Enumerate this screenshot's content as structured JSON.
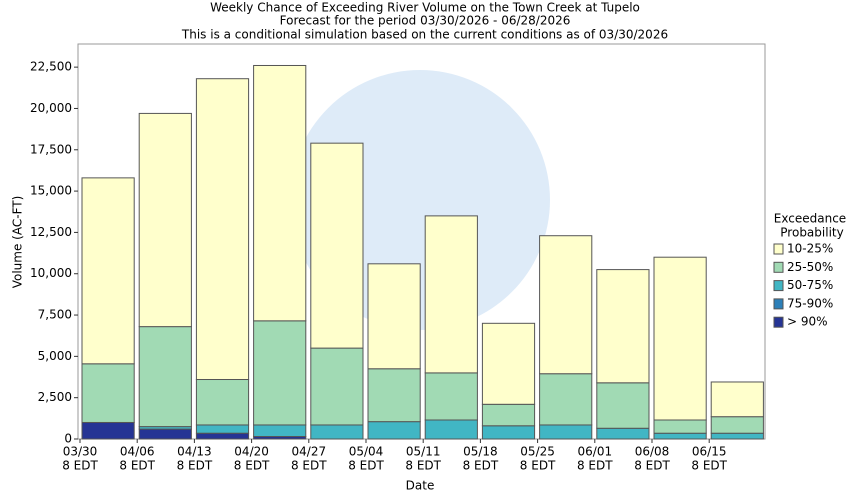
{
  "chart_data": {
    "type": "stacked_bar",
    "title": [
      "Weekly Chance of Exceeding River Volume on the Town Creek at Tupelo",
      "Forecast for the period 03/30/2026 - 06/28/2026",
      "This is a conditional simulation based on the current conditions as of 03/30/2026"
    ],
    "x_label": "Date",
    "y_label": "Volume (AC-FT)",
    "legend_title": [
      "Exceedance",
      "Probability"
    ],
    "legend_position": "right",
    "categories": [
      [
        "03/30",
        "8 EDT"
      ],
      [
        "04/06",
        "8 EDT"
      ],
      [
        "04/13",
        "8 EDT"
      ],
      [
        "04/20",
        "8 EDT"
      ],
      [
        "04/27",
        "8 EDT"
      ],
      [
        "05/04",
        "8 EDT"
      ],
      [
        "05/11",
        "8 EDT"
      ],
      [
        "05/18",
        "8 EDT"
      ],
      [
        "05/25",
        "8 EDT"
      ],
      [
        "06/01",
        "8 EDT"
      ],
      [
        "06/08",
        "8 EDT"
      ],
      [
        "06/15",
        "8 EDT"
      ]
    ],
    "series": [
      {
        "name": "> 90%",
        "color": "#253494",
        "values": [
          1000,
          600,
          350,
          150,
          0,
          0,
          0,
          0,
          0,
          0,
          0,
          0
        ]
      },
      {
        "name": "75-90%",
        "color": "#2c7fb8",
        "values": [
          0,
          0,
          0,
          0,
          0,
          0,
          0,
          0,
          0,
          0,
          0,
          0
        ]
      },
      {
        "name": "50-75%",
        "color": "#41b6c4",
        "values": [
          0,
          150,
          500,
          700,
          850,
          1050,
          1150,
          800,
          850,
          650,
          350,
          350
        ]
      },
      {
        "name": "25-50%",
        "color": "#a1dab4",
        "values": [
          3550,
          6050,
          2750,
          6300,
          4650,
          3200,
          2850,
          1300,
          3100,
          2750,
          800,
          1000
        ]
      },
      {
        "name": "10-25%",
        "color": "#ffffcc",
        "values": [
          11250,
          12900,
          18200,
          15450,
          12400,
          6350,
          9500,
          4900,
          8350,
          6850,
          9850,
          2100
        ]
      }
    ],
    "ylim": [
      0,
      23900
    ],
    "yticks": [
      0,
      {
        "value": 2500,
        "label": "2,500"
      },
      {
        "value": 5000,
        "label": "5,000"
      },
      {
        "value": 7500,
        "label": "7,500"
      },
      {
        "value": 10000,
        "label": "10,000"
      },
      {
        "value": 12500,
        "label": "12,500"
      },
      {
        "value": 15000,
        "label": "15,000"
      },
      {
        "value": 17500,
        "label": "17,500"
      },
      {
        "value": 20000,
        "label": "20,000"
      },
      {
        "value": 22500,
        "label": "22,500"
      }
    ],
    "grid": false
  }
}
